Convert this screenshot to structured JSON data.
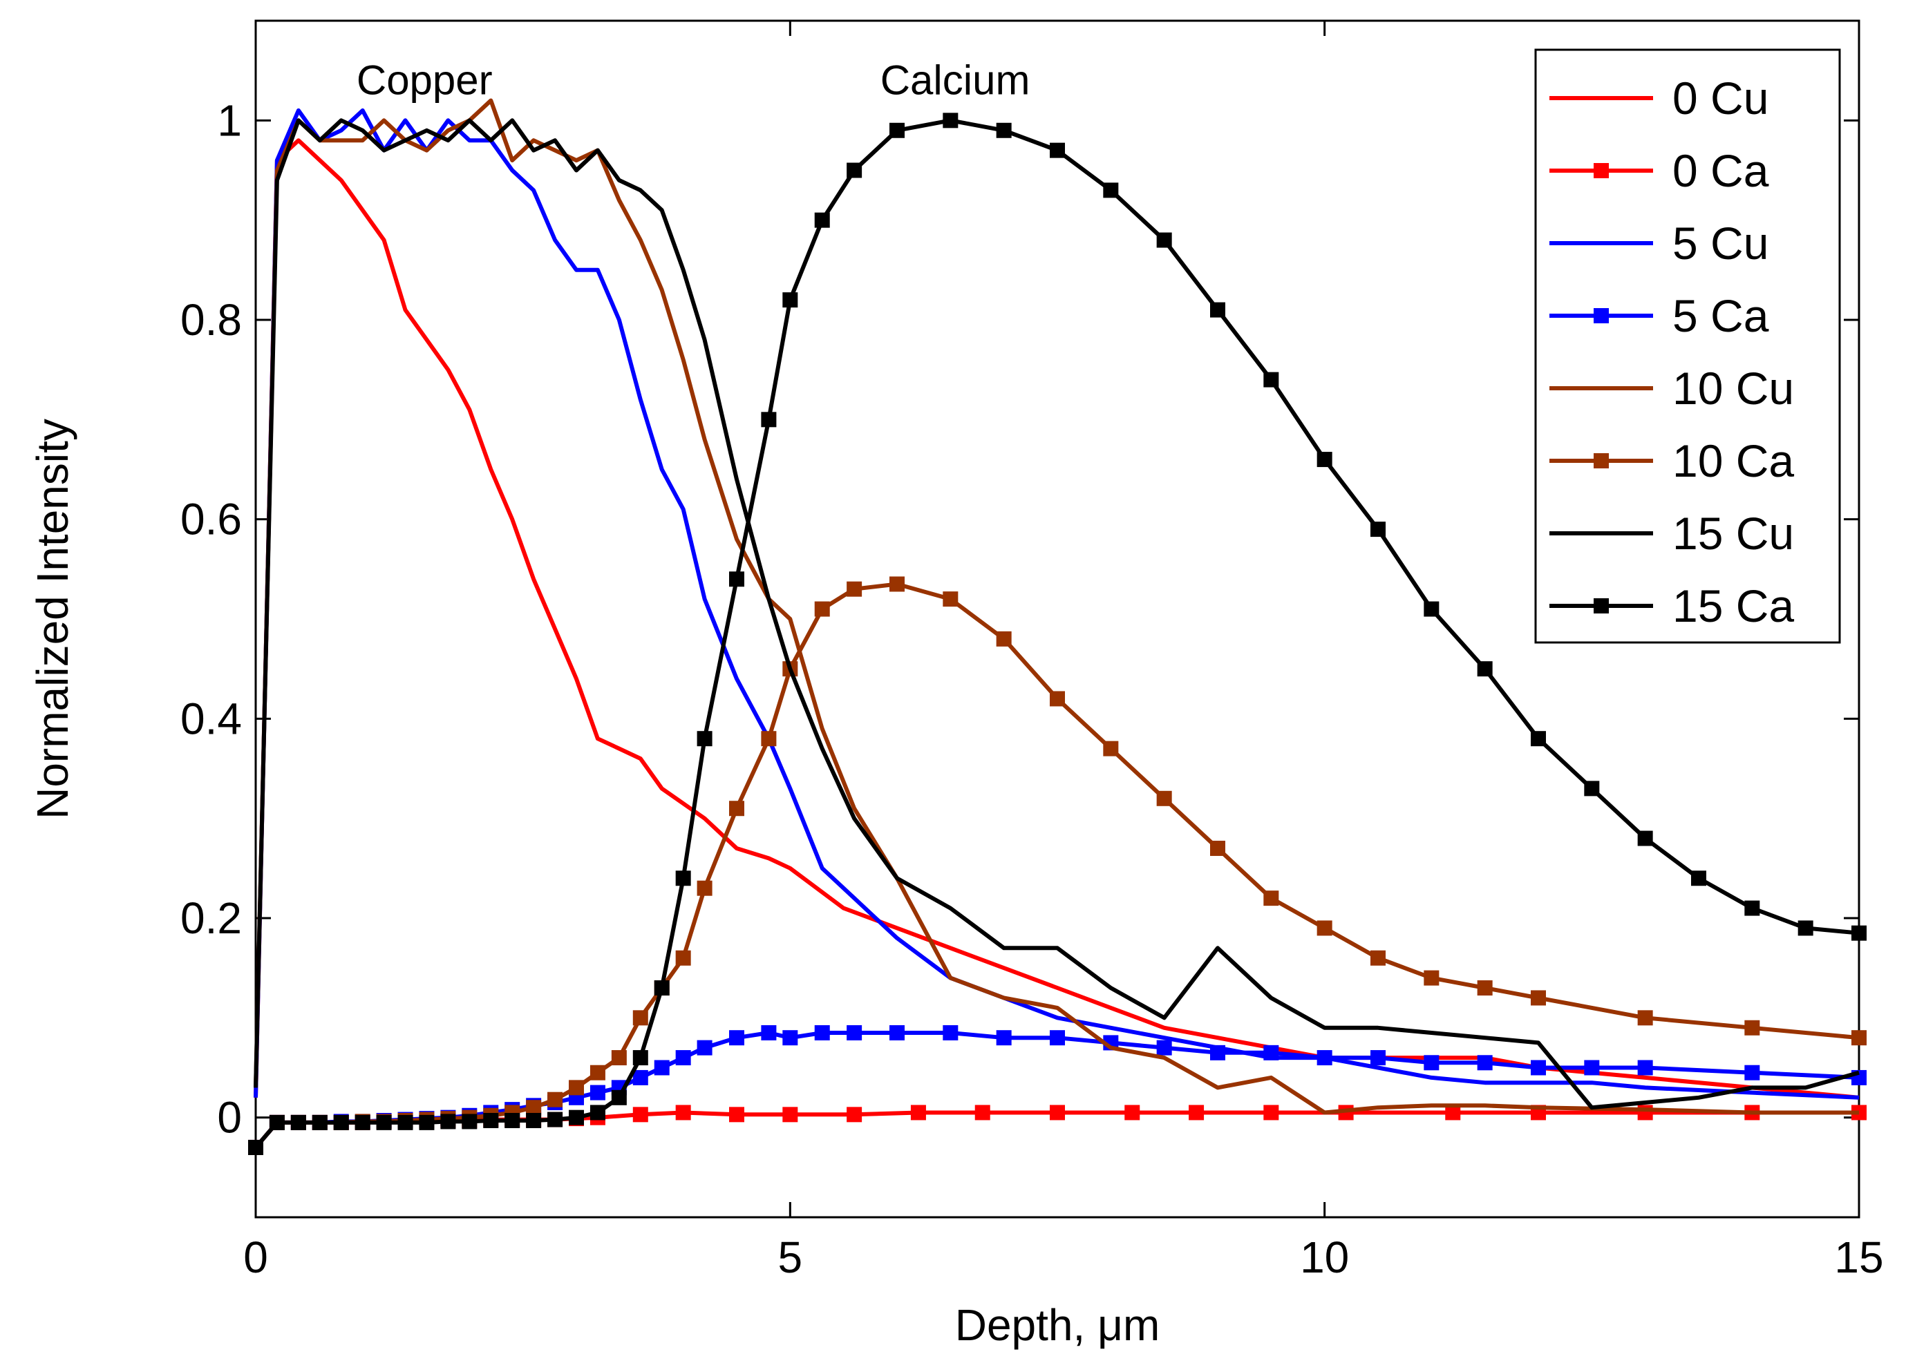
{
  "chart_data": {
    "type": "line",
    "title": "",
    "xlabel": "Depth, μm",
    "ylabel": "Normalized Intensity",
    "xlim": [
      0,
      15
    ],
    "ylim": [
      -0.1,
      1.1
    ],
    "xticks": [
      0,
      5,
      10,
      15
    ],
    "xtick_labels": [
      "0",
      "5",
      "10",
      "15"
    ],
    "yticks": [
      0,
      0.2,
      0.4,
      0.6,
      0.8,
      1
    ],
    "ytick_labels": [
      "0",
      "0.2",
      "0.4",
      "0.6",
      "0.8",
      "1"
    ],
    "grid": false,
    "legend_position": "top-right",
    "annotations": [
      {
        "text": "Copper",
        "x": 1.9,
        "y": 1.04
      },
      {
        "text": "Calcium",
        "x": 6.8,
        "y": 1.04
      }
    ],
    "series": [
      {
        "name": "0 Cu",
        "color": "#ff0000",
        "marker": "none",
        "x": [
          0,
          0.2,
          0.4,
          0.8,
          1.0,
          1.2,
          1.4,
          1.6,
          1.8,
          2.0,
          2.2,
          2.4,
          2.6,
          2.8,
          3.0,
          3.2,
          3.4,
          3.6,
          3.8,
          4.2,
          4.5,
          4.8,
          5.0,
          5.5,
          6.0,
          6.5,
          7.0,
          7.5,
          8.0,
          8.5,
          9.0,
          9.5,
          10.0,
          10.5,
          11.0,
          11.5,
          12.0,
          13.0,
          14.0,
          15.0
        ],
        "y": [
          0.02,
          0.96,
          0.98,
          0.94,
          0.91,
          0.88,
          0.81,
          0.78,
          0.75,
          0.71,
          0.65,
          0.6,
          0.54,
          0.49,
          0.44,
          0.38,
          0.37,
          0.36,
          0.33,
          0.3,
          0.27,
          0.26,
          0.25,
          0.21,
          0.19,
          0.17,
          0.15,
          0.13,
          0.11,
          0.09,
          0.08,
          0.07,
          0.06,
          0.06,
          0.06,
          0.06,
          0.05,
          0.04,
          0.03,
          0.02
        ]
      },
      {
        "name": "0 Ca",
        "color": "#ff0000",
        "marker": "square",
        "x": [
          0,
          0.2,
          0.4,
          0.6,
          0.8,
          1.0,
          1.2,
          1.4,
          1.6,
          1.8,
          2.0,
          2.2,
          2.4,
          2.6,
          2.8,
          3.0,
          3.2,
          3.6,
          4.0,
          4.5,
          5.0,
          5.6,
          6.2,
          6.8,
          7.5,
          8.2,
          8.8,
          9.5,
          10.2,
          11.2,
          12.0,
          13.0,
          14.0,
          15.0
        ],
        "y": [
          -0.03,
          -0.005,
          -0.005,
          -0.005,
          -0.005,
          -0.005,
          -0.004,
          -0.003,
          -0.003,
          -0.003,
          -0.003,
          -0.002,
          -0.002,
          -0.002,
          -0.002,
          -0.001,
          0.0,
          0.003,
          0.005,
          0.003,
          0.003,
          0.003,
          0.005,
          0.005,
          0.005,
          0.005,
          0.005,
          0.005,
          0.005,
          0.005,
          0.005,
          0.005,
          0.005,
          0.005
        ]
      },
      {
        "name": "5 Cu",
        "color": "#0000ff",
        "marker": "none",
        "x": [
          0,
          0.2,
          0.4,
          0.6,
          0.8,
          1.0,
          1.2,
          1.4,
          1.6,
          1.8,
          2.0,
          2.2,
          2.4,
          2.6,
          2.8,
          3.0,
          3.2,
          3.4,
          3.6,
          3.8,
          4.0,
          4.2,
          4.5,
          4.8,
          5.0,
          5.3,
          5.6,
          6.0,
          6.5,
          7.0,
          7.5,
          8.0,
          8.5,
          9.0,
          9.5,
          10.0,
          10.5,
          11.0,
          11.5,
          12.0,
          12.5,
          13.0,
          14.0,
          15.0
        ],
        "y": [
          0.02,
          0.96,
          1.01,
          0.98,
          0.99,
          1.01,
          0.97,
          1.0,
          0.97,
          1.0,
          0.98,
          0.98,
          0.95,
          0.93,
          0.88,
          0.85,
          0.85,
          0.8,
          0.72,
          0.65,
          0.61,
          0.52,
          0.44,
          0.38,
          0.33,
          0.25,
          0.22,
          0.18,
          0.14,
          0.12,
          0.1,
          0.09,
          0.08,
          0.07,
          0.06,
          0.06,
          0.05,
          0.04,
          0.035,
          0.035,
          0.035,
          0.03,
          0.025,
          0.02
        ]
      },
      {
        "name": "5 Ca",
        "color": "#0000ff",
        "marker": "square",
        "x": [
          0,
          0.2,
          0.4,
          0.6,
          0.8,
          1.0,
          1.2,
          1.4,
          1.6,
          1.8,
          2.0,
          2.2,
          2.4,
          2.6,
          2.8,
          3.0,
          3.2,
          3.4,
          3.6,
          3.8,
          4.0,
          4.2,
          4.5,
          4.8,
          5.0,
          5.3,
          5.6,
          6.0,
          6.5,
          7.0,
          7.5,
          8.0,
          8.5,
          9.0,
          9.5,
          10.0,
          10.5,
          11.0,
          11.5,
          12.0,
          12.5,
          13.0,
          14.0,
          15.0
        ],
        "y": [
          -0.03,
          -0.005,
          -0.005,
          -0.005,
          -0.004,
          -0.004,
          -0.003,
          -0.002,
          -0.001,
          0.0,
          0.002,
          0.005,
          0.008,
          0.012,
          0.015,
          0.02,
          0.025,
          0.03,
          0.04,
          0.05,
          0.06,
          0.07,
          0.08,
          0.085,
          0.08,
          0.085,
          0.085,
          0.085,
          0.085,
          0.08,
          0.08,
          0.075,
          0.07,
          0.065,
          0.065,
          0.06,
          0.06,
          0.055,
          0.055,
          0.05,
          0.05,
          0.05,
          0.045,
          0.04
        ]
      },
      {
        "name": "10 Cu",
        "color": "#993300",
        "marker": "none",
        "x": [
          0,
          0.2,
          0.4,
          0.6,
          0.8,
          1.0,
          1.2,
          1.4,
          1.6,
          1.8,
          2.0,
          2.2,
          2.4,
          2.6,
          2.8,
          3.0,
          3.2,
          3.4,
          3.6,
          3.8,
          4.0,
          4.2,
          4.5,
          4.8,
          5.0,
          5.3,
          5.6,
          6.0,
          6.5,
          7.0,
          7.5,
          8.0,
          8.5,
          9.0,
          9.5,
          10.0,
          10.5,
          11.0,
          11.5,
          12.0,
          13.0,
          14.0,
          15.0
        ],
        "y": [
          0.03,
          0.95,
          1.0,
          0.98,
          0.98,
          0.98,
          1.0,
          0.98,
          0.97,
          0.99,
          1.0,
          1.02,
          0.96,
          0.98,
          0.97,
          0.96,
          0.97,
          0.92,
          0.88,
          0.83,
          0.76,
          0.68,
          0.58,
          0.52,
          0.5,
          0.39,
          0.31,
          0.24,
          0.14,
          0.12,
          0.11,
          0.07,
          0.06,
          0.03,
          0.04,
          0.005,
          0.01,
          0.012,
          0.012,
          0.01,
          0.008,
          0.005,
          0.005
        ]
      },
      {
        "name": "10 Ca",
        "color": "#993300",
        "marker": "square",
        "x": [
          0,
          0.2,
          0.4,
          0.6,
          0.8,
          1.0,
          1.2,
          1.4,
          1.6,
          1.8,
          2.0,
          2.2,
          2.4,
          2.6,
          2.8,
          3.0,
          3.2,
          3.4,
          3.6,
          3.8,
          4.0,
          4.2,
          4.5,
          4.8,
          5.0,
          5.3,
          5.6,
          6.0,
          6.5,
          7.0,
          7.5,
          8.0,
          8.5,
          9.0,
          9.5,
          10.0,
          10.5,
          11.0,
          11.5,
          12.0,
          13.0,
          14.0,
          15.0
        ],
        "y": [
          -0.03,
          -0.005,
          -0.005,
          -0.005,
          -0.005,
          -0.004,
          -0.004,
          -0.003,
          -0.002,
          -0.001,
          0.0,
          0.002,
          0.005,
          0.01,
          0.018,
          0.03,
          0.045,
          0.06,
          0.1,
          0.13,
          0.16,
          0.23,
          0.31,
          0.38,
          0.45,
          0.51,
          0.53,
          0.535,
          0.52,
          0.48,
          0.42,
          0.37,
          0.32,
          0.27,
          0.22,
          0.19,
          0.16,
          0.14,
          0.13,
          0.12,
          0.1,
          0.09,
          0.08
        ]
      },
      {
        "name": "15 Cu",
        "color": "#000000",
        "marker": "none",
        "x": [
          0,
          0.2,
          0.4,
          0.6,
          0.8,
          1.0,
          1.2,
          1.4,
          1.6,
          1.8,
          2.0,
          2.2,
          2.4,
          2.6,
          2.8,
          3.0,
          3.2,
          3.4,
          3.6,
          3.8,
          4.0,
          4.2,
          4.5,
          4.8,
          5.0,
          5.3,
          5.6,
          6.0,
          6.5,
          7.0,
          7.5,
          8.0,
          8.5,
          9.0,
          9.5,
          10.0,
          10.5,
          11.0,
          11.5,
          12.0,
          12.5,
          13.0,
          13.5,
          14.0,
          14.5,
          15.0
        ],
        "y": [
          0.03,
          0.94,
          1.0,
          0.98,
          1.0,
          0.99,
          0.97,
          0.98,
          0.99,
          0.98,
          1.0,
          0.98,
          1.0,
          0.97,
          0.98,
          0.95,
          0.97,
          0.94,
          0.93,
          0.91,
          0.85,
          0.78,
          0.64,
          0.52,
          0.45,
          0.37,
          0.3,
          0.24,
          0.21,
          0.17,
          0.17,
          0.13,
          0.1,
          0.17,
          0.12,
          0.09,
          0.09,
          0.085,
          0.08,
          0.075,
          0.01,
          0.015,
          0.02,
          0.03,
          0.03,
          0.045
        ]
      },
      {
        "name": "15 Ca",
        "color": "#000000",
        "marker": "square",
        "x": [
          0,
          0.2,
          0.4,
          0.6,
          0.8,
          1.0,
          1.2,
          1.4,
          1.6,
          1.8,
          2.0,
          2.2,
          2.4,
          2.6,
          2.8,
          3.0,
          3.2,
          3.4,
          3.6,
          3.8,
          4.0,
          4.2,
          4.5,
          4.8,
          5.0,
          5.3,
          5.6,
          6.0,
          6.5,
          7.0,
          7.5,
          8.0,
          8.5,
          9.0,
          9.5,
          10.0,
          10.5,
          11.0,
          11.5,
          12.0,
          12.5,
          13.0,
          13.5,
          14.0,
          14.5,
          15.0
        ],
        "y": [
          -0.03,
          -0.005,
          -0.005,
          -0.005,
          -0.005,
          -0.005,
          -0.005,
          -0.005,
          -0.005,
          -0.004,
          -0.004,
          -0.003,
          -0.003,
          -0.003,
          -0.002,
          0.0,
          0.005,
          0.02,
          0.06,
          0.13,
          0.24,
          0.38,
          0.54,
          0.7,
          0.82,
          0.9,
          0.95,
          0.99,
          1.0,
          0.99,
          0.97,
          0.93,
          0.88,
          0.81,
          0.74,
          0.66,
          0.59,
          0.51,
          0.45,
          0.38,
          0.33,
          0.28,
          0.24,
          0.21,
          0.19,
          0.185
        ]
      }
    ]
  }
}
